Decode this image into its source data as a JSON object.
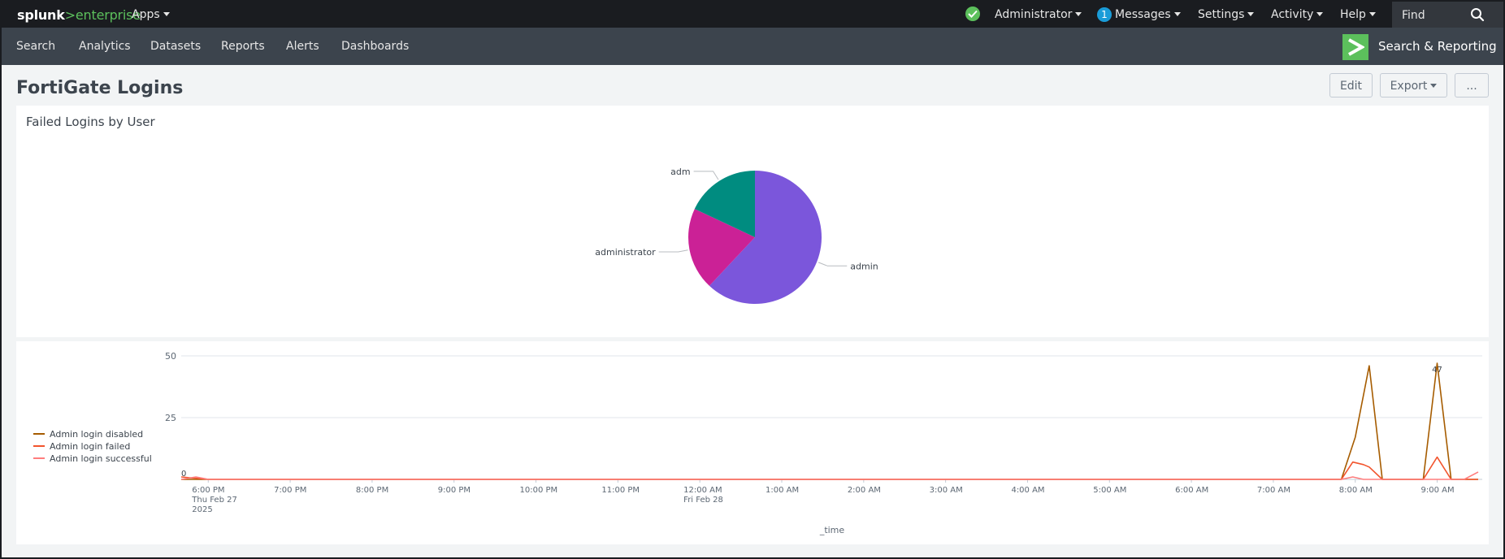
{
  "topbar": {
    "logo_splunk": "splunk",
    "logo_gt": ">",
    "logo_enterprise": "enterprise",
    "apps": "Apps",
    "user": "Administrator",
    "messages_count": "1",
    "messages": "Messages",
    "settings": "Settings",
    "activity": "Activity",
    "help": "Help",
    "find_placeholder": "Find"
  },
  "appbar": {
    "nav": [
      "Search",
      "Analytics",
      "Datasets",
      "Reports",
      "Alerts",
      "Dashboards"
    ],
    "app_name": "Search & Reporting"
  },
  "dashboard": {
    "title": "FortiGate Logins",
    "edit": "Edit",
    "export": "Export",
    "more": "..."
  },
  "pie_panel": {
    "title": "Failed Logins by User"
  },
  "colors": {
    "accent_green": "#5cc05c",
    "pie_admin": "#7b56db",
    "pie_administrator": "#cb2196",
    "pie_adm": "#008c80",
    "line_disabled": "#a65c00",
    "line_failed": "#f2542d",
    "line_successful": "#ff7d7d"
  },
  "chart_data": [
    {
      "type": "pie",
      "title": "Failed Logins by User",
      "categories": [
        "admin",
        "administrator",
        "adm"
      ],
      "values": [
        62,
        20,
        18
      ],
      "colors": [
        "#7b56db",
        "#cb2196",
        "#008c80"
      ]
    },
    {
      "type": "line",
      "xlabel": "_time",
      "ylabel": "",
      "ylim": [
        0,
        50
      ],
      "yticks": [
        "0",
        "25",
        "50"
      ],
      "ytick_values": [
        0,
        25,
        50
      ],
      "xticks": [
        {
          "t": 18,
          "lines": [
            "6:00 PM",
            "Thu Feb 27",
            "2025"
          ]
        },
        {
          "t": 19,
          "lines": [
            "7:00 PM"
          ]
        },
        {
          "t": 20,
          "lines": [
            "8:00 PM"
          ]
        },
        {
          "t": 21,
          "lines": [
            "9:00 PM"
          ]
        },
        {
          "t": 22,
          "lines": [
            "10:00 PM"
          ]
        },
        {
          "t": 23,
          "lines": [
            "11:00 PM"
          ]
        },
        {
          "t": 24,
          "lines": [
            "12:00 AM",
            "Fri Feb 28"
          ]
        },
        {
          "t": 25,
          "lines": [
            "1:00 AM"
          ]
        },
        {
          "t": 26,
          "lines": [
            "2:00 AM"
          ]
        },
        {
          "t": 27,
          "lines": [
            "3:00 AM"
          ]
        },
        {
          "t": 28,
          "lines": [
            "4:00 AM"
          ]
        },
        {
          "t": 29,
          "lines": [
            "5:00 AM"
          ]
        },
        {
          "t": 30,
          "lines": [
            "6:00 AM"
          ]
        },
        {
          "t": 31,
          "lines": [
            "7:00 AM"
          ]
        },
        {
          "t": 32,
          "lines": [
            "8:00 AM"
          ]
        },
        {
          "t": 33,
          "lines": [
            "9:00 AM"
          ]
        }
      ],
      "x_unit_note": "hours from Thu Feb 27 00:00",
      "xlim": [
        17.67,
        33.55
      ],
      "grid": true,
      "legend_position": "left",
      "series": [
        {
          "name": "Admin login disabled",
          "color": "#a65c00",
          "x": [
            17.67,
            18.0,
            31.83,
            32.0,
            32.17,
            32.33,
            32.67,
            32.83,
            33.0,
            33.17,
            33.33,
            33.5
          ],
          "values": [
            0,
            0,
            0,
            17,
            46,
            0,
            0,
            0,
            47,
            0,
            0,
            0
          ]
        },
        {
          "name": "Admin login failed",
          "color": "#f2542d",
          "x": [
            17.67,
            18.0,
            31.83,
            31.97,
            32.1,
            32.17,
            32.33,
            32.67,
            32.83,
            33.0,
            33.17,
            33.33,
            33.5
          ],
          "values": [
            1,
            0,
            0,
            7,
            6,
            5,
            0,
            0,
            0,
            9,
            0,
            0,
            0
          ]
        },
        {
          "name": "Admin login successful",
          "color": "#ff7d7d",
          "x": [
            17.67,
            17.85,
            18.0,
            31.83,
            31.97,
            32.1,
            32.33,
            33.33,
            33.5
          ],
          "values": [
            0,
            1,
            0,
            0,
            1,
            0,
            0,
            0,
            3
          ]
        }
      ],
      "annotations": [
        {
          "x": 17.67,
          "y": 0,
          "text": "0"
        },
        {
          "x": 33.0,
          "y": 47,
          "text": "47"
        }
      ]
    }
  ]
}
